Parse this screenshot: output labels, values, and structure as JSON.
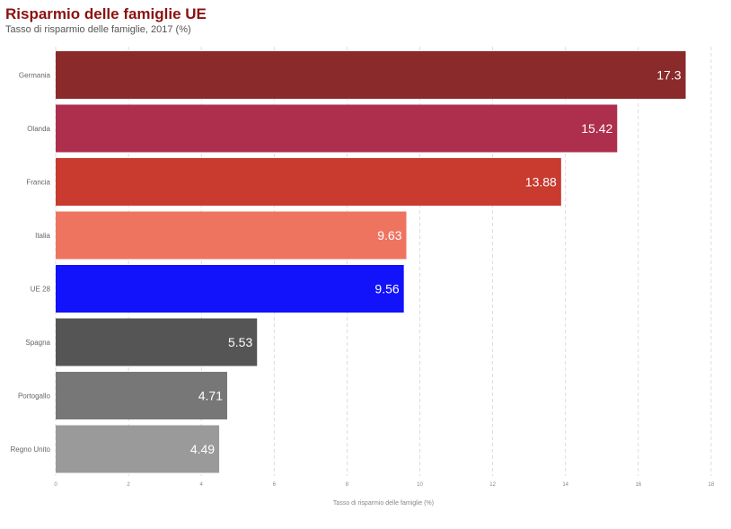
{
  "chart_data": {
    "type": "bar",
    "orientation": "horizontal",
    "title": "Risparmio delle famiglie UE",
    "subtitle": "Tasso di risparmio delle famiglie, 2017 (%)",
    "xlabel": "Tasso di risparmio delle famiglie (%)",
    "xlim": [
      0,
      18
    ],
    "xticks": [
      0,
      2,
      4,
      6,
      8,
      10,
      12,
      14,
      16,
      18
    ],
    "grid": true,
    "categories": [
      "Germania",
      "Olanda",
      "Francia",
      "Italia",
      "UE 28",
      "Spagna",
      "Portogallo",
      "Regno Unito"
    ],
    "values": [
      17.3,
      15.42,
      13.88,
      9.63,
      9.56,
      5.53,
      4.71,
      4.49
    ],
    "value_labels": [
      "17.3",
      "15.42",
      "13.88",
      "9.63",
      "9.56",
      "5.53",
      "4.71",
      "4.49"
    ],
    "colors": [
      "#8b2a2a",
      "#ae2f4d",
      "#c93a2f",
      "#ef7460",
      "#1212fb",
      "#555555",
      "#777777",
      "#9a9a9a"
    ]
  }
}
